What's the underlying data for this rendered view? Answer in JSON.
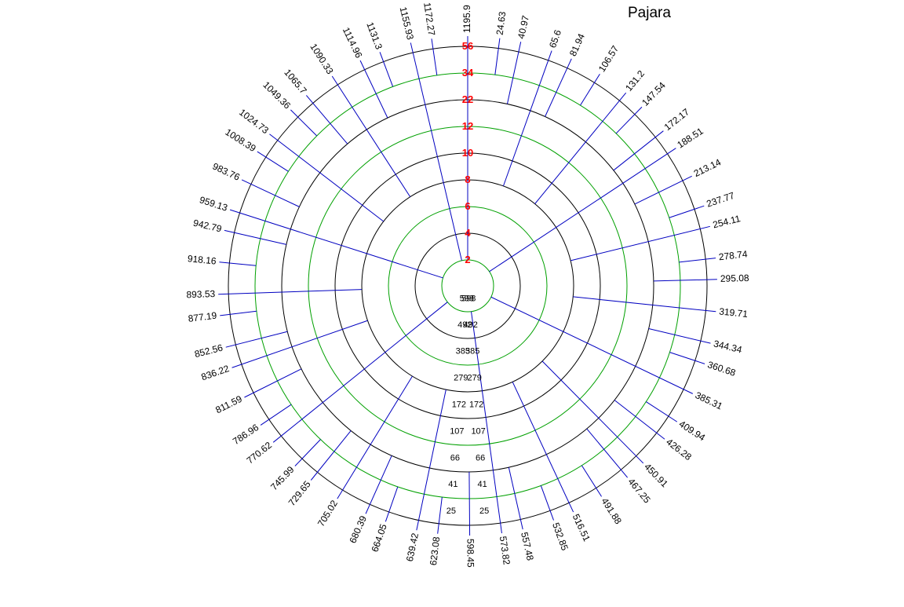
{
  "title": "Pajara",
  "colors": {
    "ring_black": "#000000",
    "ring_green": "#00a000",
    "radial": "#0000c0",
    "level_label": "#ff0000",
    "text": "#000000"
  },
  "levels": [
    {
      "label": "2",
      "color": "green"
    },
    {
      "label": "4",
      "color": "black"
    },
    {
      "label": "6",
      "color": "green"
    },
    {
      "label": "8",
      "color": "black"
    },
    {
      "label": "10",
      "color": "black"
    },
    {
      "label": "12",
      "color": "green"
    },
    {
      "label": "22",
      "color": "black"
    },
    {
      "label": "34",
      "color": "green"
    },
    {
      "label": "56",
      "color": "black"
    }
  ],
  "ring_inner_steps": [
    "598",
    "492",
    "385",
    "279",
    "172",
    "107",
    "66",
    "41",
    "25"
  ],
  "outer_labels": [
    {
      "angle": 0,
      "text": "1195.9"
    },
    {
      "angle": 24.63,
      "text": "24.63"
    },
    {
      "angle": 40.97,
      "text": "40.97"
    },
    {
      "angle": 65.6,
      "text": "65.6"
    },
    {
      "angle": 81.94,
      "text": "81.94"
    },
    {
      "angle": 106.57,
      "text": "106.57"
    },
    {
      "angle": 131.2,
      "text": "131.2"
    },
    {
      "angle": 147.54,
      "text": "147.54"
    },
    {
      "angle": 172.17,
      "text": "172.17"
    },
    {
      "angle": 188.51,
      "text": "188.51"
    },
    {
      "angle": 213.14,
      "text": "213.14"
    },
    {
      "angle": 237.77,
      "text": "237.77"
    },
    {
      "angle": 254.11,
      "text": "254.11"
    },
    {
      "angle": 278.74,
      "text": "278.74"
    },
    {
      "angle": 295.08,
      "text": "295.08"
    },
    {
      "angle": 319.71,
      "text": "319.71"
    },
    {
      "angle": 344.34,
      "text": "344.34"
    },
    {
      "angle": 360.68,
      "text": "360.68"
    },
    {
      "angle": 385.31,
      "text": "385.31"
    },
    {
      "angle": 409.94,
      "text": "409.94"
    },
    {
      "angle": 426.28,
      "text": "426.28"
    },
    {
      "angle": 450.91,
      "text": "450.91"
    },
    {
      "angle": 467.25,
      "text": "467.25"
    },
    {
      "angle": 491.88,
      "text": "491.88"
    },
    {
      "angle": 516.51,
      "text": "516.51"
    },
    {
      "angle": 532.85,
      "text": "532.85"
    },
    {
      "angle": 557.48,
      "text": "557.48"
    },
    {
      "angle": 573.82,
      "text": "573.82"
    },
    {
      "angle": 598.45,
      "text": "598.45"
    },
    {
      "angle": 623.08,
      "text": "623.08"
    },
    {
      "angle": 639.42,
      "text": "639.42"
    },
    {
      "angle": 664.05,
      "text": "664.05"
    },
    {
      "angle": 680.39,
      "text": "680.39"
    },
    {
      "angle": 705.02,
      "text": "705.02"
    },
    {
      "angle": 729.65,
      "text": "729.65"
    },
    {
      "angle": 745.99,
      "text": "745.99"
    },
    {
      "angle": 770.62,
      "text": "770.62"
    },
    {
      "angle": 786.96,
      "text": "786.96"
    },
    {
      "angle": 811.59,
      "text": "811.59"
    },
    {
      "angle": 836.22,
      "text": "836.22"
    },
    {
      "angle": 852.56,
      "text": "852.56"
    },
    {
      "angle": 877.19,
      "text": "877.19"
    },
    {
      "angle": 893.53,
      "text": "893.53"
    },
    {
      "angle": 918.16,
      "text": "918.16"
    },
    {
      "angle": 942.79,
      "text": "942.79"
    },
    {
      "angle": 959.13,
      "text": "959.13"
    },
    {
      "angle": 983.76,
      "text": "983.76"
    },
    {
      "angle": 1008.39,
      "text": "1008.39"
    },
    {
      "angle": 1024.73,
      "text": "1024.73"
    },
    {
      "angle": 1049.36,
      "text": "1049.36"
    },
    {
      "angle": 1065.7,
      "text": "1065.7"
    },
    {
      "angle": 1090.33,
      "text": "1090.33"
    },
    {
      "angle": 1114.96,
      "text": "1114.96"
    },
    {
      "angle": 1131.3,
      "text": "1131.3"
    },
    {
      "angle": 1155.93,
      "text": "1155.93"
    },
    {
      "angle": 1172.27,
      "text": "1172.27"
    }
  ]
}
